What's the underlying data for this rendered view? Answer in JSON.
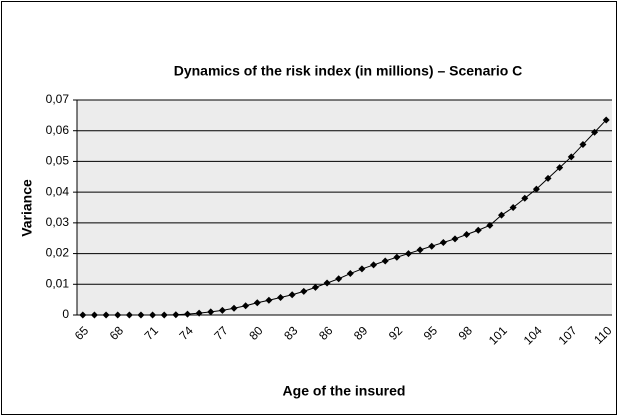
{
  "chart_data": {
    "type": "line",
    "title": "Dynamics of the risk index (in millions) – Scenario C",
    "x_label": "Age of the insured",
    "y_label": "Variance",
    "categories": [
      "65",
      null,
      null,
      "68",
      null,
      null,
      "71",
      null,
      null,
      "74",
      null,
      null,
      "77",
      null,
      null,
      "80",
      null,
      null,
      "83",
      null,
      null,
      "86",
      null,
      null,
      "89",
      null,
      null,
      "92",
      null,
      null,
      "95",
      null,
      null,
      "98",
      null,
      null,
      "101",
      null,
      null,
      "104",
      null,
      null,
      "107",
      null,
      null,
      "110"
    ],
    "series": [
      {
        "name": "Variance",
        "color": "#000000",
        "values": [
          0,
          0,
          0,
          0,
          0,
          0,
          0,
          0,
          0.0001,
          0.0003,
          0.0006,
          0.001,
          0.0015,
          0.0022,
          0.003,
          0.004,
          0.0048,
          0.0057,
          0.0066,
          0.0077,
          0.009,
          0.0104,
          0.0118,
          0.0135,
          0.015,
          0.0163,
          0.0176,
          0.0188,
          0.02,
          0.0212,
          0.0224,
          0.0236,
          0.0248,
          0.0262,
          0.0276,
          0.0292,
          0.0325,
          0.035,
          0.038,
          0.041,
          0.0445,
          0.048,
          0.0515,
          0.0555,
          0.0595,
          0.0635
        ]
      }
    ],
    "ylim": [
      0,
      0.07
    ],
    "yticks": [
      0,
      {
        "value": 0.01,
        "label": "0,01"
      },
      {
        "value": 0.02,
        "label": "0,02"
      },
      {
        "value": 0.03,
        "label": "0,03"
      },
      {
        "value": 0.04,
        "label": "0,04"
      },
      {
        "value": 0.05,
        "label": "0,05"
      },
      {
        "value": 0.06,
        "label": "0,06"
      },
      {
        "value": 0.07,
        "label": "0,07"
      }
    ],
    "grid": true
  }
}
